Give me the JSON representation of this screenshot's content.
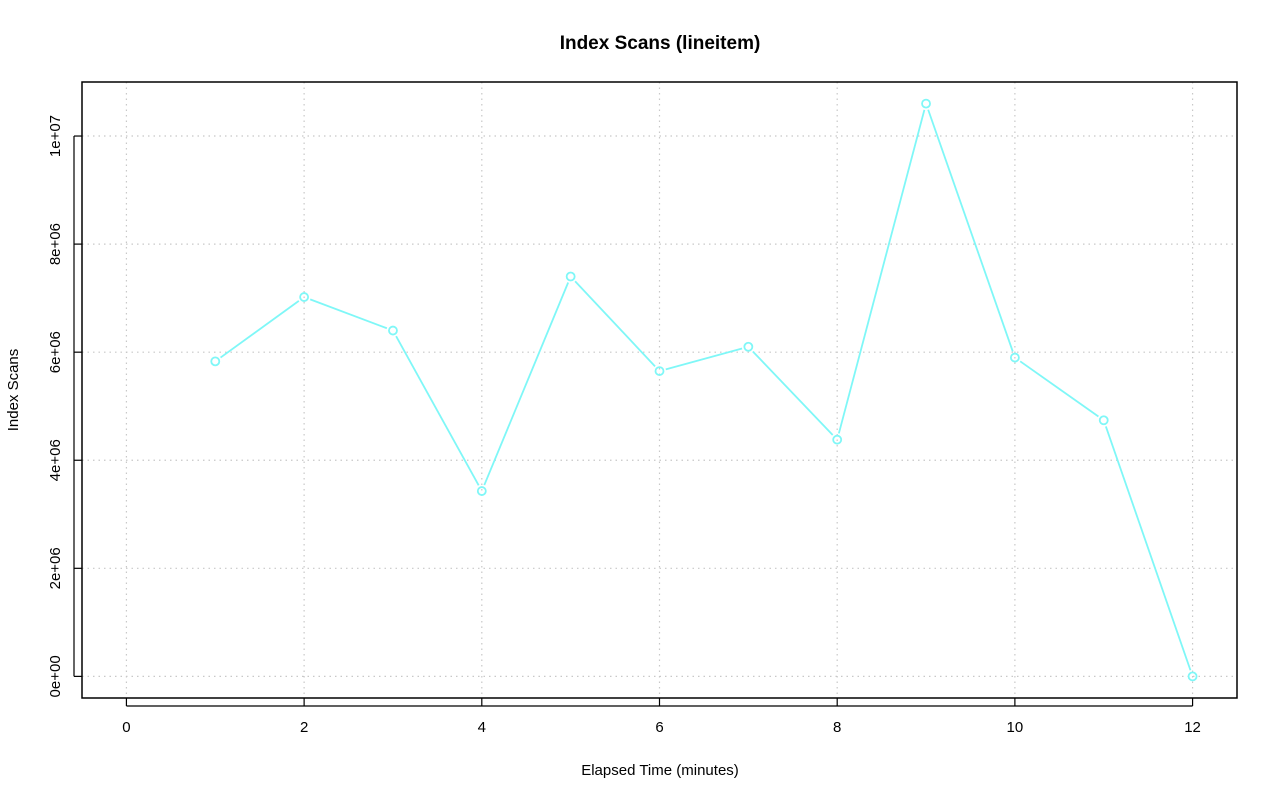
{
  "chart_data": {
    "type": "line",
    "title": "Index Scans (lineitem)",
    "xlabel": "Elapsed Time (minutes)",
    "ylabel": "Index Scans",
    "xlim": [
      -0.5,
      12.5
    ],
    "ylim": [
      -400000,
      11000000
    ],
    "x_ticks": [
      0,
      2,
      4,
      6,
      8,
      10,
      12
    ],
    "x_tick_labels": [
      "0",
      "2",
      "4",
      "6",
      "8",
      "10",
      "12"
    ],
    "y_ticks": [
      0,
      2000000,
      4000000,
      6000000,
      8000000,
      10000000
    ],
    "y_tick_labels": [
      "0e+00",
      "2e+06",
      "4e+06",
      "6e+06",
      "8e+06",
      "1e+07"
    ],
    "grid": true,
    "series": [
      {
        "color": "#7ff7f7",
        "marker": "circle",
        "x": [
          1,
          2,
          3,
          4,
          5,
          6,
          7,
          8,
          9,
          10,
          11,
          12
        ],
        "values": [
          5830000,
          7020000,
          6400000,
          3430000,
          7400000,
          5650000,
          6100000,
          4380000,
          10600000,
          5900000,
          4740000,
          0
        ]
      }
    ]
  }
}
